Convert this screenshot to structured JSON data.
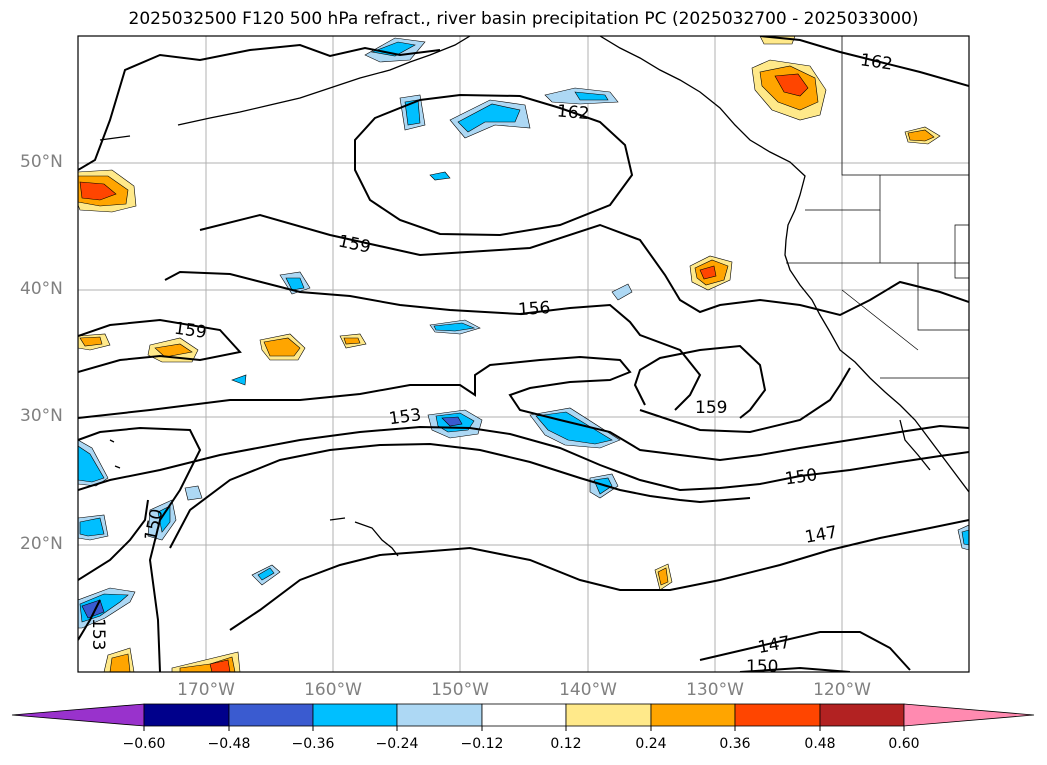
{
  "title": "2025032500 F120 500 hPa refract., river basin precipitation PC (2025032700 - 2025033000)",
  "lat_labels": [
    "50°N",
    "40°N",
    "30°N",
    "20°N"
  ],
  "lon_labels": [
    "170°W",
    "160°W",
    "150°W",
    "140°W",
    "130°W",
    "120°W"
  ],
  "contour_labels": [
    "162",
    "162",
    "159",
    "159",
    "156",
    "153",
    "159",
    "150",
    "150",
    "147",
    "147",
    "150",
    "153"
  ],
  "colorbar": {
    "ticks": [
      "−0.60",
      "−0.48",
      "−0.36",
      "−0.24",
      "−0.12",
      "0.12",
      "0.24",
      "0.36",
      "0.48",
      "0.60"
    ],
    "colors": [
      "#9932cc",
      "#00008b",
      "#3a5bd0",
      "#00bfff",
      "#add8f4",
      "#ffffff",
      "#ffe98a",
      "#ffa500",
      "#ff4500",
      "#b22222",
      "#ff8ab0"
    ]
  }
}
